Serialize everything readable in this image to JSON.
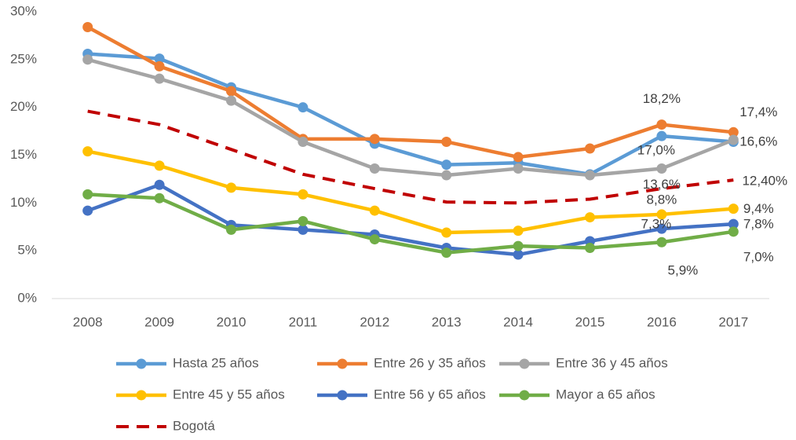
{
  "chart_data": {
    "type": "line",
    "x": [
      "2008",
      "2009",
      "2010",
      "2011",
      "2012",
      "2013",
      "2014",
      "2015",
      "2016",
      "2017"
    ],
    "ylim": [
      0,
      30
    ],
    "yticks": [
      {
        "value": 0,
        "label": "0%"
      },
      {
        "value": 5,
        "label": "5%"
      },
      {
        "value": 10,
        "label": "10%"
      },
      {
        "value": 15,
        "label": "15%"
      },
      {
        "value": 20,
        "label": "20%"
      },
      {
        "value": 25,
        "label": "25%"
      },
      {
        "value": 30,
        "label": "30%"
      }
    ],
    "grid": false,
    "legend": "bottom",
    "series": [
      {
        "name": "Hasta 25 años",
        "color": "#5B9BD5",
        "dash": false,
        "markers": true,
        "values": [
          25.6,
          25.1,
          22.1,
          20.0,
          16.2,
          14.0,
          14.2,
          13.0,
          17.0,
          16.4
        ],
        "value_labels": [
          null,
          null,
          null,
          null,
          null,
          null,
          null,
          null,
          "17,0%",
          null
        ]
      },
      {
        "name": "Entre 26 y 35 años",
        "color": "#ED7D31",
        "dash": false,
        "markers": true,
        "values": [
          28.4,
          24.3,
          21.7,
          16.7,
          16.7,
          16.4,
          14.8,
          15.7,
          18.2,
          17.4
        ],
        "value_labels": [
          null,
          null,
          null,
          null,
          null,
          null,
          null,
          null,
          "18,2%",
          "17,4%"
        ]
      },
      {
        "name": "Entre 36 y 45 años",
        "color": "#A5A5A5",
        "dash": false,
        "markers": true,
        "values": [
          25.0,
          23.0,
          20.7,
          16.4,
          13.6,
          12.9,
          13.6,
          12.9,
          13.6,
          16.6
        ],
        "value_labels": [
          null,
          null,
          null,
          null,
          null,
          null,
          null,
          null,
          "13,6%",
          "16,6%"
        ]
      },
      {
        "name": "Entre 45 y 55 años",
        "color": "#FFC000",
        "dash": false,
        "markers": true,
        "values": [
          15.4,
          13.9,
          11.6,
          10.9,
          9.2,
          6.9,
          7.1,
          8.5,
          8.8,
          9.4
        ],
        "value_labels": [
          null,
          null,
          null,
          null,
          null,
          null,
          null,
          null,
          "8,8%",
          "9,4%"
        ]
      },
      {
        "name": "Entre 56 y 65 años",
        "color": "#4472C4",
        "dash": false,
        "markers": true,
        "values": [
          9.2,
          11.9,
          7.7,
          7.2,
          6.7,
          5.3,
          4.6,
          6.0,
          7.3,
          7.8
        ],
        "value_labels": [
          null,
          null,
          null,
          null,
          null,
          null,
          null,
          null,
          "7,3%",
          "7,8%"
        ]
      },
      {
        "name": "Mayor a 65 años",
        "color": "#70AD47",
        "dash": false,
        "markers": true,
        "values": [
          10.9,
          10.5,
          7.2,
          8.1,
          6.2,
          4.8,
          5.5,
          5.3,
          5.9,
          7.0
        ],
        "value_labels": [
          null,
          null,
          null,
          null,
          null,
          null,
          null,
          null,
          "5,9%",
          "7,0%"
        ]
      },
      {
        "name": "Bogotá",
        "color": "#C00000",
        "dash": true,
        "markers": false,
        "values": [
          19.6,
          18.2,
          15.6,
          13.0,
          11.5,
          10.1,
          10.0,
          10.4,
          11.5,
          12.4
        ],
        "value_labels": [
          null,
          null,
          null,
          null,
          null,
          null,
          null,
          null,
          null,
          "12,40%"
        ]
      }
    ]
  }
}
